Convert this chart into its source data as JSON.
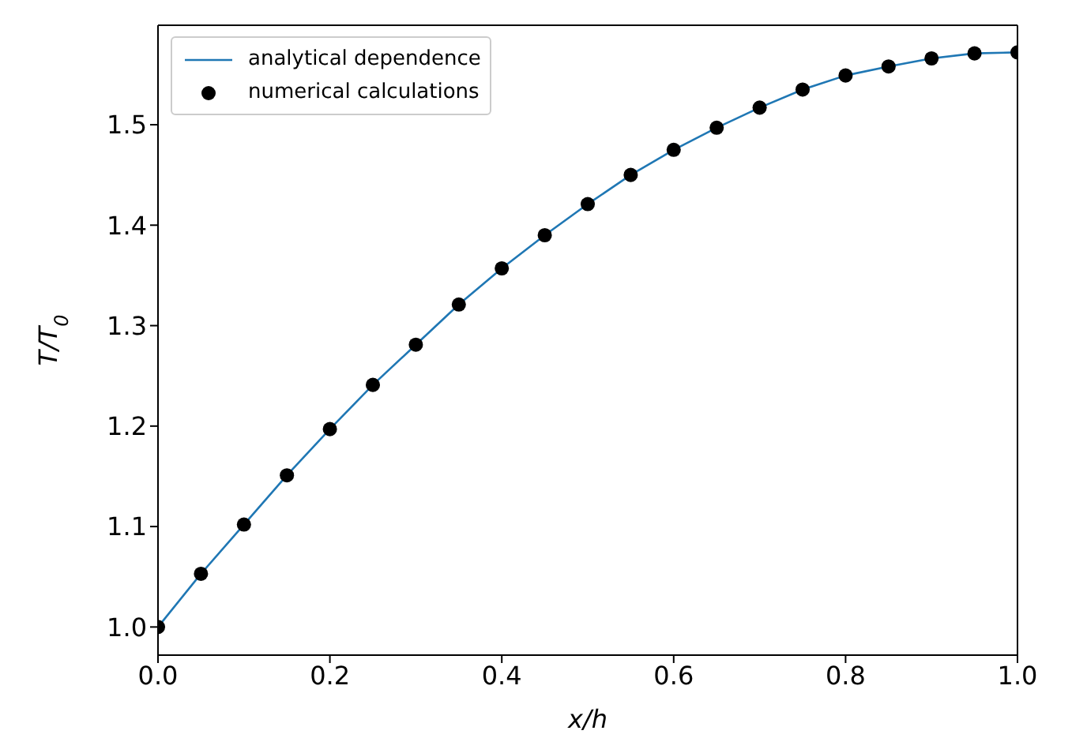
{
  "chart_data": {
    "type": "line",
    "xlabel": "x/h",
    "ylabel": "T/T$_{0}$",
    "x": [
      0,
      0.05,
      0.1,
      0.15,
      0.2,
      0.25,
      0.3,
      0.35,
      0.4,
      0.45,
      0.5,
      0.55,
      0.6,
      0.65,
      0.7,
      0.75,
      0.8,
      0.85,
      0.9,
      0.95,
      1.0
    ],
    "series": [
      {
        "name": "analytical dependence",
        "color": "#1f77b4",
        "marker": "none",
        "values": [
          1.0,
          1.053,
          1.102,
          1.151,
          1.197,
          1.241,
          1.281,
          1.321,
          1.357,
          1.39,
          1.421,
          1.45,
          1.475,
          1.497,
          1.517,
          1.535,
          1.549,
          1.558,
          1.566,
          1.571,
          1.572
        ]
      },
      {
        "name": "numerical calculations",
        "type": "scatter",
        "color": "#000000",
        "marker": "circle",
        "values": [
          1.0,
          1.053,
          1.102,
          1.151,
          1.197,
          1.241,
          1.281,
          1.321,
          1.357,
          1.39,
          1.421,
          1.45,
          1.475,
          1.497,
          1.517,
          1.535,
          1.549,
          1.558,
          1.566,
          1.571,
          1.572
        ]
      }
    ],
    "xlim": [
      0,
      1
    ],
    "xticks": [
      {
        "value": 0,
        "label": "0.0"
      },
      {
        "value": 0.2,
        "label": "0.2"
      },
      {
        "value": 0.4,
        "label": "0.4"
      },
      {
        "value": 0.6,
        "label": "0.6"
      },
      {
        "value": 0.8,
        "label": "0.8"
      },
      {
        "value": 1,
        "label": "1.0"
      }
    ],
    "ylim": [
      0.972,
      1.599
    ],
    "yticks": [
      {
        "value": 1,
        "label": "1.0"
      },
      {
        "value": 1.1,
        "label": "1.1"
      },
      {
        "value": 1.2,
        "label": "1.2"
      },
      {
        "value": 1.3,
        "label": "1.3"
      },
      {
        "value": 1.4,
        "label": "1.4"
      },
      {
        "value": 1.5,
        "label": "1.5"
      }
    ],
    "legend": "top left",
    "grid": false
  }
}
